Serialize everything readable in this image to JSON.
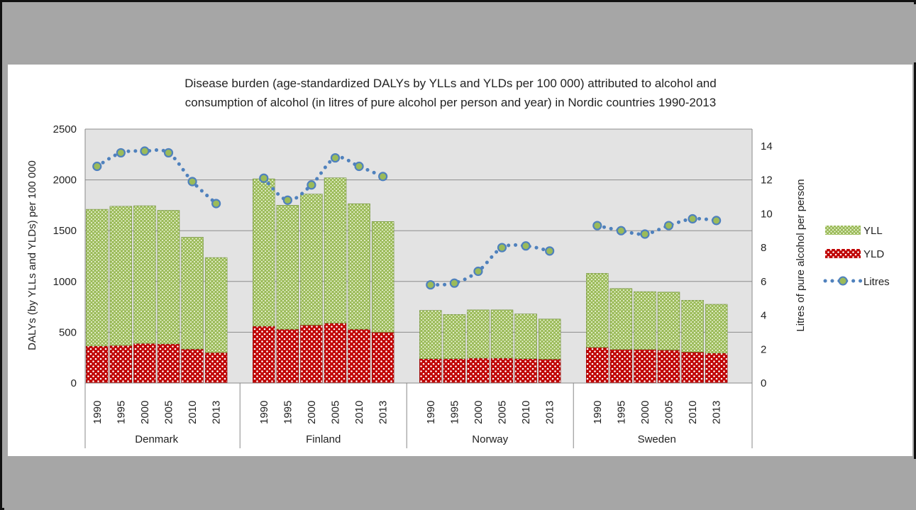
{
  "chart_data": {
    "type": "bar",
    "title_lines": [
      "Disease burden (age-standardized DALYs by YLLs and YLDs per 100 000) attributed to alcohol and",
      "consumption of alcohol (in litres of pure alcohol per person and year) in Nordic countries 1990-2013"
    ],
    "ylabel": "DALYs (by YLLs and YLDs) per 100 000",
    "y2label": "Litres of pure alcohol per person",
    "ylim": [
      0,
      2500
    ],
    "y2lim": [
      0,
      15
    ],
    "yticks": [
      "0",
      "500",
      "1000",
      "1500",
      "2000",
      "2500"
    ],
    "y2ticks": [
      "0",
      "2",
      "4",
      "6",
      "8",
      "10",
      "12",
      "14"
    ],
    "stacked": true,
    "grid": true,
    "legend_position": "right",
    "groups": [
      {
        "name": "Denmark",
        "years": [
          "1990",
          "1995",
          "2000",
          "2005",
          "2010",
          "2013"
        ],
        "yld": [
          365,
          370,
          390,
          385,
          335,
          300
        ],
        "yll": [
          1345,
          1370,
          1355,
          1315,
          1100,
          935
        ],
        "litres": [
          12.8,
          13.6,
          13.7,
          13.6,
          11.9,
          10.6
        ]
      },
      {
        "name": "Finland",
        "years": [
          "1990",
          "1995",
          "2000",
          "2005",
          "2010",
          "2013"
        ],
        "yld": [
          560,
          530,
          570,
          590,
          530,
          500
        ],
        "yll": [
          1450,
          1220,
          1290,
          1430,
          1235,
          1090
        ],
        "litres": [
          12.1,
          10.8,
          11.7,
          13.3,
          12.8,
          12.2
        ]
      },
      {
        "name": "Norway",
        "years": [
          "1990",
          "1995",
          "2000",
          "2005",
          "2010",
          "2013"
        ],
        "yld": [
          240,
          240,
          245,
          245,
          240,
          235
        ],
        "yll": [
          475,
          435,
          475,
          475,
          440,
          395
        ],
        "litres": [
          5.8,
          5.9,
          6.6,
          8.0,
          8.1,
          7.8
        ]
      },
      {
        "name": "Sweden",
        "years": [
          "1990",
          "1995",
          "2000",
          "2005",
          "2010",
          "2013"
        ],
        "yld": [
          350,
          330,
          330,
          325,
          305,
          295
        ],
        "yll": [
          730,
          600,
          570,
          570,
          510,
          480
        ],
        "litres": [
          9.3,
          9.0,
          8.8,
          9.3,
          9.7,
          9.6
        ]
      }
    ],
    "series": [
      {
        "name": "YLL",
        "color": "#9bbb59",
        "kind": "bar-top"
      },
      {
        "name": "YLD",
        "color": "#c00000",
        "kind": "bar-bottom"
      },
      {
        "name": "Litres",
        "color": "#4f81bd",
        "marker_fill": "#9bbb59",
        "kind": "dotted-line"
      }
    ]
  }
}
